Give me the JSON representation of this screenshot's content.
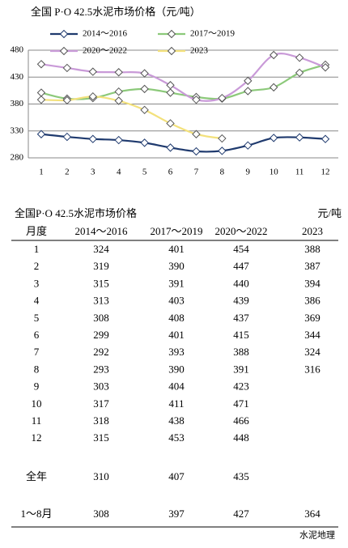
{
  "chart_data": {
    "type": "line",
    "title": "全国  P·O 42.5水泥市场价格（元/吨）",
    "categories": [
      "1",
      "2",
      "3",
      "4",
      "5",
      "6",
      "7",
      "8",
      "9",
      "10",
      "11",
      "12"
    ],
    "series": [
      {
        "name": "2014～2016",
        "color": "#1f3a6e",
        "values": [
          324,
          319,
          315,
          313,
          308,
          299,
          292,
          293,
          303,
          317,
          318,
          315
        ]
      },
      {
        "name": "2017～2019",
        "color": "#8cc97a",
        "values": [
          401,
          390,
          391,
          403,
          408,
          401,
          393,
          390,
          404,
          411,
          438,
          453
        ]
      },
      {
        "name": "2020～2022",
        "color": "#c99ad8",
        "values": [
          454,
          447,
          440,
          439,
          437,
          415,
          388,
          391,
          423,
          471,
          466,
          448
        ]
      },
      {
        "name": "2023",
        "color": "#f3e17c",
        "values": [
          388,
          387,
          394,
          386,
          369,
          344,
          324,
          316,
          null,
          null,
          null,
          null
        ]
      }
    ],
    "ylim": [
      280,
      480
    ],
    "yticks": [
      280,
      330,
      380,
      430,
      480
    ],
    "grid": true
  },
  "table": {
    "title": "全国P·O 42.5水泥市场价格",
    "unit": "元/吨",
    "headers": [
      "月度",
      "2014～2016",
      "2017～2019",
      "2020～2022",
      "2023"
    ],
    "rows": [
      [
        "1",
        324,
        401,
        454,
        388
      ],
      [
        "2",
        319,
        390,
        447,
        387
      ],
      [
        "3",
        315,
        391,
        440,
        394
      ],
      [
        "4",
        313,
        403,
        439,
        386
      ],
      [
        "5",
        308,
        408,
        437,
        369
      ],
      [
        "6",
        299,
        401,
        415,
        344
      ],
      [
        "7",
        292,
        393,
        388,
        324
      ],
      [
        "8",
        293,
        390,
        391,
        316
      ],
      [
        "9",
        303,
        404,
        423,
        null
      ],
      [
        "10",
        317,
        411,
        471,
        null
      ],
      [
        "11",
        318,
        438,
        466,
        null
      ],
      [
        "12",
        315,
        453,
        448,
        null
      ],
      [
        "全年",
        310,
        407,
        435,
        null
      ],
      [
        "1～8月",
        308,
        397,
        427,
        364
      ]
    ]
  },
  "watermark": "水泥地理"
}
